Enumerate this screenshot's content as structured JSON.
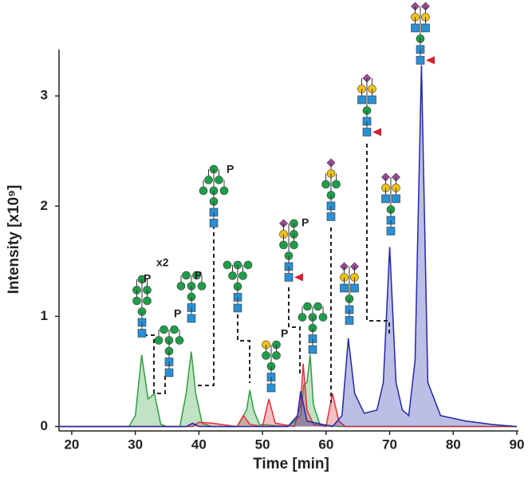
{
  "chart_data": {
    "type": "area",
    "xlabel": "Time [min]",
    "ylabel": "Intensity  [x10⁹]",
    "xlim": [
      18,
      90
    ],
    "xticks": [
      20,
      30,
      40,
      50,
      60,
      70,
      80,
      90
    ],
    "ylim": [
      -0.04,
      3.4
    ],
    "yticks": [
      0,
      1,
      2,
      3
    ],
    "series": [
      {
        "color": "#2f9e3f",
        "x": [
          18,
          29,
          30,
          31,
          32,
          33,
          34,
          35,
          37,
          38,
          38.8,
          39.5,
          40.5,
          42,
          46,
          47.5,
          48,
          48.6,
          49.5,
          54,
          56,
          56.5,
          57,
          57.5,
          58,
          59,
          62,
          90
        ],
        "values": [
          0,
          0,
          0.1,
          0.65,
          0.25,
          0.3,
          0.02,
          0,
          0,
          0.3,
          0.68,
          0.3,
          0.03,
          0,
          0,
          0.15,
          0.33,
          0.15,
          0.02,
          0,
          0.1,
          0.38,
          0.4,
          0.65,
          0.2,
          0.02,
          0,
          0
        ]
      },
      {
        "color": "#e0303a",
        "x": [
          18,
          39,
          40,
          42,
          46,
          47,
          48,
          50,
          51,
          52,
          55,
          56,
          56.4,
          57,
          58,
          60,
          61,
          62,
          63,
          90
        ],
        "values": [
          0,
          0,
          0.04,
          0.03,
          0,
          0.1,
          0.02,
          0,
          0.25,
          0.03,
          0,
          0.2,
          0.57,
          0.15,
          0.02,
          0,
          0.3,
          0.05,
          0,
          0
        ]
      },
      {
        "color": "#2327a8",
        "x": [
          18,
          38,
          39,
          40,
          54,
          55.5,
          56,
          57,
          61,
          62.5,
          63.5,
          64.5,
          66,
          68,
          69,
          70,
          71,
          72,
          73,
          74,
          75,
          76,
          78,
          82,
          86,
          90
        ],
        "values": [
          0,
          0,
          0.03,
          0,
          0,
          0.1,
          0.32,
          0.05,
          0,
          0.1,
          0.8,
          0.3,
          0.12,
          0.15,
          0.4,
          1.63,
          0.4,
          0.15,
          0.1,
          0.6,
          3.28,
          0.4,
          0.1,
          0.05,
          0.02,
          0
        ]
      }
    ],
    "annotations": [
      "x2",
      "P",
      "P",
      "P",
      "P",
      "P",
      "P"
    ]
  }
}
